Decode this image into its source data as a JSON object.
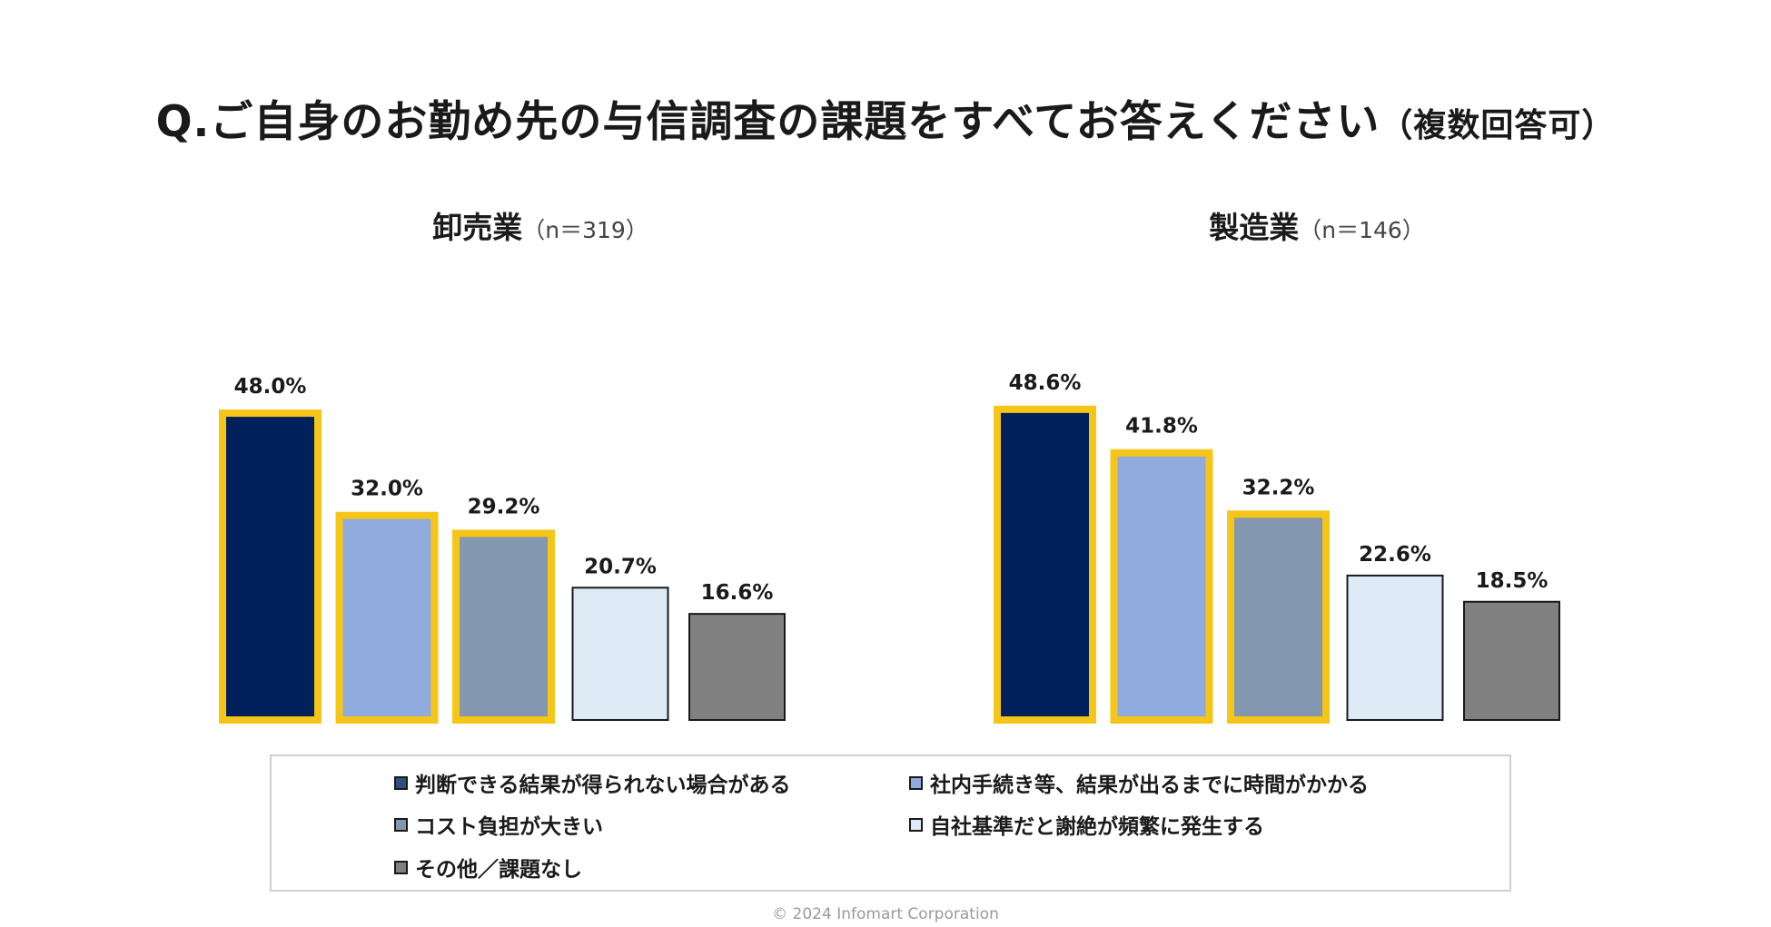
{
  "title": "Q.ご自身のお勤め先の与信調査の課題をすべてお答えください",
  "title_note": "（複数回答可）",
  "footer": "© 2024 Infomart Corporation",
  "colors": {
    "series": [
      "#00205b",
      "#8faadc",
      "#8497b0",
      "#deeaf6",
      "#808080"
    ],
    "highlight": "#f5c518",
    "outline": "#1a1a1a"
  },
  "legend": [
    "判断できる結果が得られない場合がある",
    "社内手続き等、結果が出るまでに時間がかかる",
    "コスト負担が大きい",
    "自社基準だと謝絶が頻繁に発生する",
    "その他／課題なし"
  ],
  "chart_data": [
    {
      "type": "bar",
      "title": "卸売業",
      "n_label": "（n＝319）",
      "categories": [
        "判断できる結果が得られない場合がある",
        "社内手続き等、結果が出るまでに時間がかかる",
        "コスト負担が大きい",
        "自社基準だと謝絶が頻繁に発生する",
        "その他／課題なし"
      ],
      "values": [
        48.0,
        32.0,
        29.2,
        20.7,
        16.6
      ],
      "labels": [
        "48.0%",
        "32.0%",
        "29.2%",
        "20.7%",
        "16.6%"
      ],
      "highlighted": [
        true,
        true,
        true,
        false,
        false
      ],
      "unit": "%",
      "ylim": [
        0,
        50
      ]
    },
    {
      "type": "bar",
      "title": "製造業",
      "n_label": "（n＝146）",
      "categories": [
        "判断できる結果が得られない場合がある",
        "社内手続き等、結果が出るまでに時間がかかる",
        "コスト負担が大きい",
        "自社基準だと謝絶が頻繁に発生する",
        "その他／課題なし"
      ],
      "values": [
        48.6,
        41.8,
        32.2,
        22.6,
        18.5
      ],
      "labels": [
        "48.6%",
        "41.8%",
        "32.2%",
        "22.6%",
        "18.5%"
      ],
      "highlighted": [
        true,
        true,
        true,
        false,
        false
      ],
      "unit": "%",
      "ylim": [
        0,
        50
      ]
    }
  ]
}
